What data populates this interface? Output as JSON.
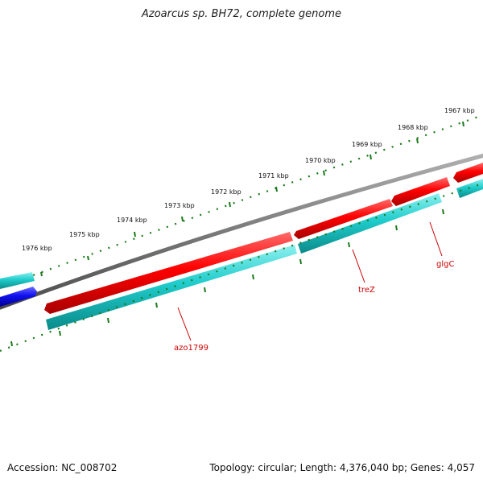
{
  "title": "Azoarcus sp. BH72, complete genome",
  "footer": {
    "accession": "Accession: NC_008702",
    "summary": "Topology: circular; Length: 4,376,040 bp; Genes: 4,057"
  },
  "scale_labels": [
    "1976 kbp",
    "1975 kbp",
    "1974 kbp",
    "1973 kbp",
    "1972 kbp",
    "1971 kbp",
    "1970 kbp",
    "1969 kbp",
    "1968 kbp",
    "1967 kbp"
  ],
  "gene_labels": [
    "azo1799",
    "treZ",
    "glgC"
  ],
  "colors": {
    "forward_gene": "#e60000",
    "reverse_gene": "#1ec8c8",
    "other_gene": "#1010e0",
    "backbone": "#808080",
    "ticks": "#1a7a1a",
    "label_line": "#cc0000"
  }
}
